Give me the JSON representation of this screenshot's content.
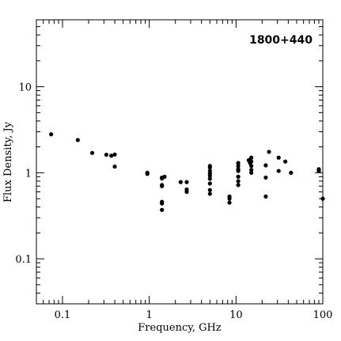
{
  "chart_data": {
    "type": "scatter",
    "title": "1800+440",
    "xlabel": "Frequency, GHz",
    "ylabel": "Flux Density, Jy",
    "xscale": "log",
    "yscale": "log",
    "xlim": [
      0.05,
      100
    ],
    "ylim": [
      0.03,
      60
    ],
    "xticks": [
      {
        "value": 0.1,
        "label": "0.1"
      },
      {
        "value": 1,
        "label": "1"
      },
      {
        "value": 10,
        "label": "10"
      },
      {
        "value": 100,
        "label": "100"
      }
    ],
    "yticks": [
      {
        "value": 0.1,
        "label": "0.1"
      },
      {
        "value": 1,
        "label": "1"
      },
      {
        "value": 10,
        "label": "10"
      }
    ],
    "title_position": "top-right",
    "grid": false,
    "marker_color": "#000000",
    "series": [
      {
        "x": [
          0.074,
          0.15,
          0.22,
          0.32,
          0.365,
          0.4,
          0.4,
          0.95,
          0.95,
          1.4,
          1.4,
          1.4,
          1.4,
          1.4,
          1.4,
          1.4,
          1.5,
          2.3,
          2.7,
          2.7,
          2.7,
          5.0,
          5.0,
          5.0,
          5.0,
          5.0,
          5.0,
          5.0,
          5.0,
          5.0,
          8.4,
          8.4,
          8.4,
          10.6,
          10.6,
          10.6,
          10.6,
          10.6,
          10.6,
          10.6,
          14.0,
          14.5,
          15.0,
          15.0,
          15.0,
          15.0,
          15.0,
          22.0,
          22.0,
          22.0,
          24.0,
          31.0,
          31.0,
          37.0,
          43.0,
          90.0,
          90.0,
          100.0
        ],
        "y": [
          2.8,
          2.4,
          1.7,
          1.62,
          1.58,
          1.63,
          1.18,
          1.0,
          0.97,
          0.88,
          0.86,
          0.72,
          0.7,
          0.46,
          0.44,
          0.37,
          0.9,
          0.78,
          0.78,
          0.64,
          0.6,
          1.2,
          1.15,
          1.05,
          0.98,
          0.92,
          0.85,
          0.75,
          0.63,
          0.57,
          0.53,
          0.5,
          0.45,
          1.3,
          1.2,
          1.1,
          1.05,
          0.9,
          0.8,
          0.72,
          1.4,
          1.3,
          1.5,
          1.35,
          1.2,
          1.08,
          1.0,
          1.22,
          0.88,
          0.53,
          1.75,
          1.5,
          1.05,
          1.35,
          1.0,
          1.1,
          1.05,
          0.5
        ]
      }
    ]
  }
}
